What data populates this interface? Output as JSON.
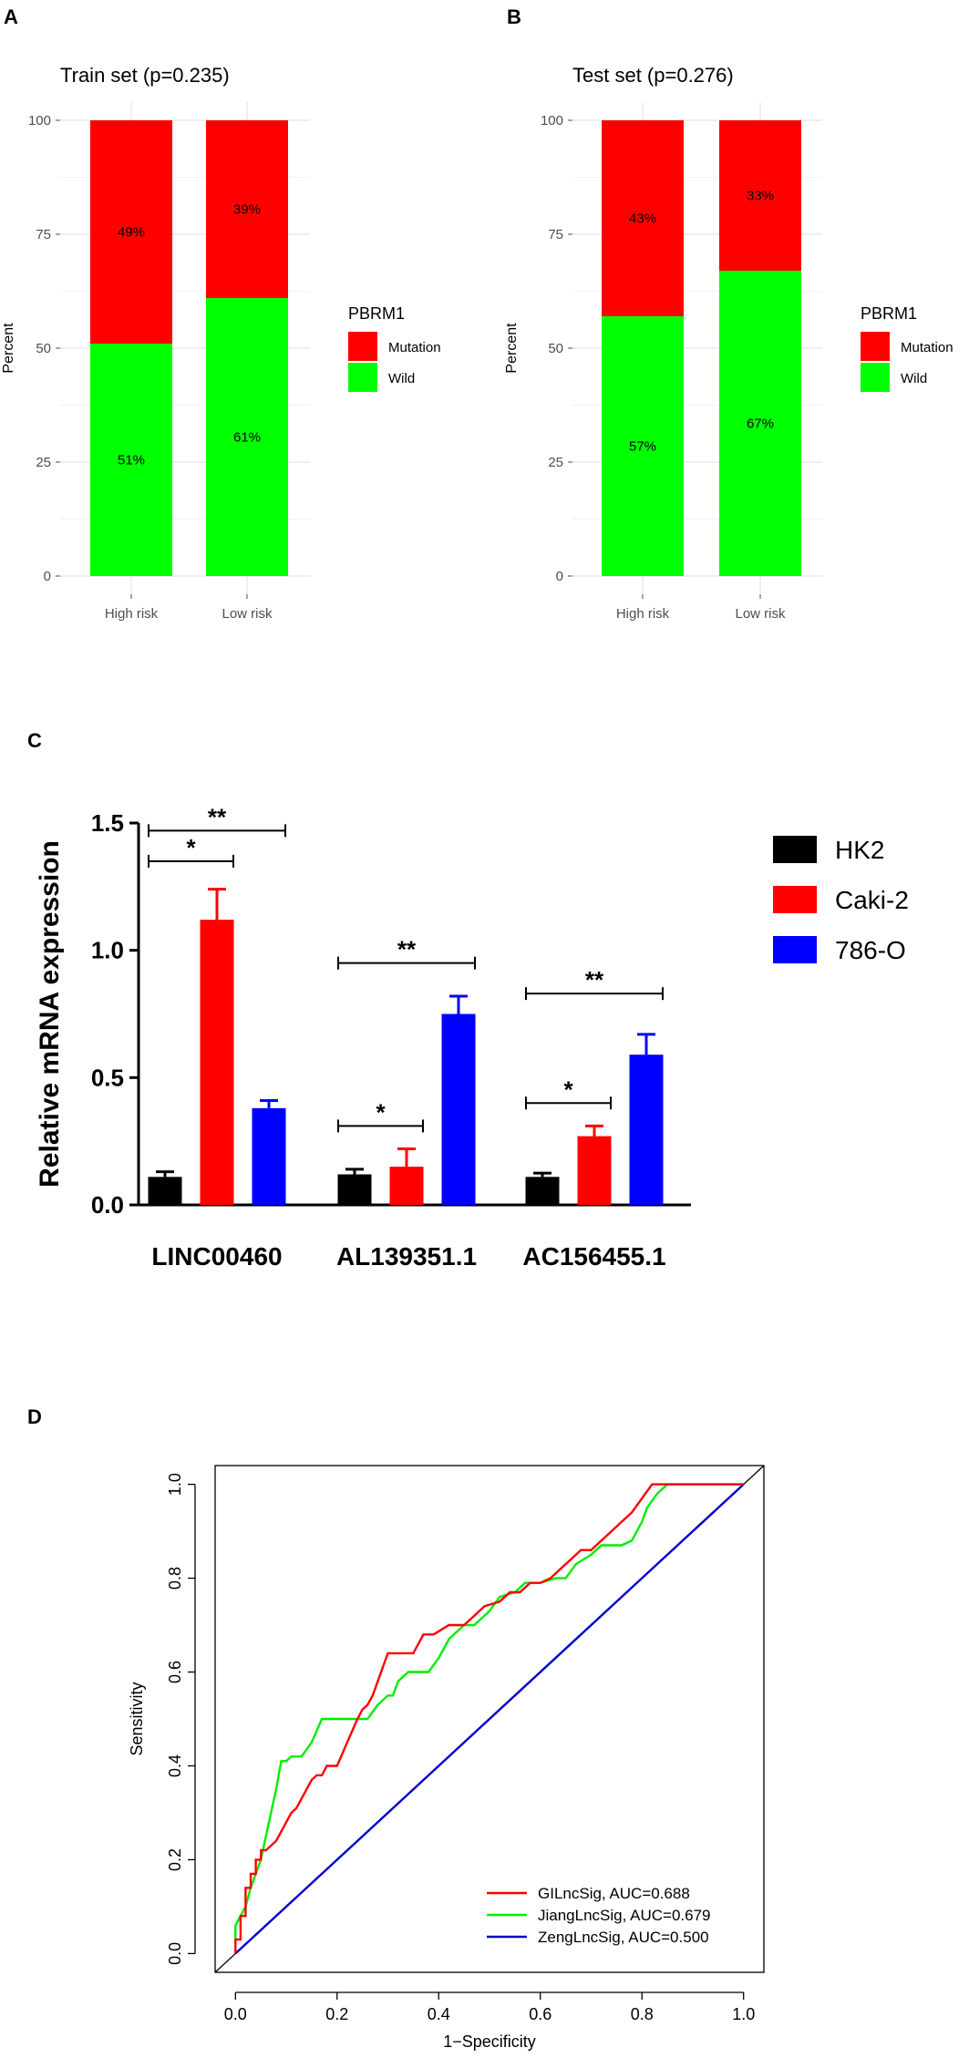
{
  "chart_data": [
    {
      "panel": "A",
      "type": "bar",
      "stacked": true,
      "title": "Train set (p=0.235)",
      "xlabel": "",
      "ylabel": "Percent",
      "ylim": [
        0,
        100
      ],
      "yticks": [
        0,
        25,
        50,
        75,
        100
      ],
      "grid": true,
      "categories": [
        "High risk",
        "Low risk"
      ],
      "legend_title": "PBRM1",
      "legend_position": "right",
      "series": [
        {
          "name": "Wild",
          "color": "#00ff00",
          "values": [
            51,
            61
          ],
          "labels": [
            "51%",
            "61%"
          ]
        },
        {
          "name": "Mutation",
          "color": "#ff0000",
          "values": [
            49,
            39
          ],
          "labels": [
            "49%",
            "39%"
          ]
        }
      ]
    },
    {
      "panel": "B",
      "type": "bar",
      "stacked": true,
      "title": "Test set (p=0.276)",
      "xlabel": "",
      "ylabel": "Percent",
      "ylim": [
        0,
        100
      ],
      "yticks": [
        0,
        25,
        50,
        75,
        100
      ],
      "grid": true,
      "categories": [
        "High risk",
        "Low risk"
      ],
      "legend_title": "PBRM1",
      "legend_position": "right",
      "series": [
        {
          "name": "Wild",
          "color": "#00ff00",
          "values": [
            57,
            67
          ],
          "labels": [
            "57%",
            "67%"
          ]
        },
        {
          "name": "Mutation",
          "color": "#ff0000",
          "values": [
            43,
            33
          ],
          "labels": [
            "43%",
            "33%"
          ]
        }
      ]
    },
    {
      "panel": "C",
      "type": "bar",
      "title": "",
      "xlabel": "",
      "ylabel": "Relative mRNA expression",
      "ylim": [
        0,
        1.5
      ],
      "yticks": [
        0.0,
        0.5,
        1.0,
        1.5
      ],
      "ytick_labels": [
        "0.0",
        "0.5",
        "1.0",
        "1.5"
      ],
      "grid": false,
      "categories": [
        "LINC00460",
        "AL139351.1",
        "AC156455.1"
      ],
      "legend_position": "right",
      "series": [
        {
          "name": "HK2",
          "color": "#000000",
          "values": [
            0.11,
            0.12,
            0.11
          ],
          "errors": [
            0.02,
            0.02,
            0.015
          ]
        },
        {
          "name": "Caki-2",
          "color": "#ff0000",
          "values": [
            1.12,
            0.15,
            0.27
          ],
          "errors": [
            0.12,
            0.07,
            0.04
          ]
        },
        {
          "name": "786-O",
          "color": "#0000ff",
          "values": [
            0.38,
            0.75,
            0.59
          ],
          "errors": [
            0.03,
            0.07,
            0.08
          ]
        }
      ],
      "significance": [
        {
          "category": "LINC00460",
          "from": "HK2",
          "to": "Caki-2",
          "y": 1.35,
          "label": "*"
        },
        {
          "category": "LINC00460",
          "from": "HK2",
          "to": "786-O",
          "y": 1.47,
          "label": "**"
        },
        {
          "category": "AL139351.1",
          "from": "HK2",
          "to": "Caki-2",
          "y": 0.31,
          "label": "*"
        },
        {
          "category": "AL139351.1",
          "from": "HK2",
          "to": "786-O",
          "y": 0.95,
          "label": "**"
        },
        {
          "category": "AC156455.1",
          "from": "HK2",
          "to": "Caki-2",
          "y": 0.4,
          "label": "*"
        },
        {
          "category": "AC156455.1",
          "from": "HK2",
          "to": "786-O",
          "y": 0.83,
          "label": "**"
        }
      ]
    },
    {
      "panel": "D",
      "type": "line",
      "title": "",
      "xlabel": "1−Specificity",
      "ylabel": "Sensitivity",
      "xlim": [
        -0.04,
        1.04
      ],
      "ylim": [
        -0.04,
        1.04
      ],
      "xticks": [
        0.0,
        0.2,
        0.4,
        0.6,
        0.8,
        1.0
      ],
      "yticks": [
        0.0,
        0.2,
        0.4,
        0.6,
        0.8,
        1.0
      ],
      "tick_labels": [
        "0.0",
        "0.2",
        "0.4",
        "0.6",
        "0.8",
        "1.0"
      ],
      "grid": false,
      "legend_position": "bottom-right",
      "series": [
        {
          "name": "GILncSig, AUC=0.688",
          "color": "#ff0000",
          "x": [
            0,
            0,
            0.01,
            0.01,
            0.02,
            0.02,
            0.03,
            0.03,
            0.04,
            0.04,
            0.05,
            0.05,
            0.06,
            0.07,
            0.08,
            0.09,
            0.1,
            0.11,
            0.12,
            0.13,
            0.14,
            0.15,
            0.16,
            0.17,
            0.18,
            0.2,
            0.22,
            0.24,
            0.25,
            0.26,
            0.27,
            0.28,
            0.29,
            0.3,
            0.32,
            0.35,
            0.37,
            0.39,
            0.42,
            0.45,
            0.47,
            0.49,
            0.52,
            0.54,
            0.56,
            0.58,
            0.6,
            0.62,
            0.64,
            0.66,
            0.68,
            0.7,
            0.72,
            0.74,
            0.76,
            0.78,
            0.8,
            0.82,
            0.86,
            1.0
          ],
          "y": [
            0,
            0.03,
            0.03,
            0.08,
            0.08,
            0.14,
            0.14,
            0.17,
            0.17,
            0.2,
            0.2,
            0.22,
            0.22,
            0.23,
            0.24,
            0.26,
            0.28,
            0.3,
            0.31,
            0.33,
            0.35,
            0.37,
            0.38,
            0.38,
            0.4,
            0.4,
            0.45,
            0.5,
            0.52,
            0.53,
            0.55,
            0.58,
            0.61,
            0.64,
            0.64,
            0.64,
            0.68,
            0.68,
            0.7,
            0.7,
            0.72,
            0.74,
            0.75,
            0.77,
            0.77,
            0.79,
            0.79,
            0.8,
            0.82,
            0.84,
            0.86,
            0.86,
            0.88,
            0.9,
            0.92,
            0.94,
            0.97,
            1.0,
            1.0,
            1.0
          ]
        },
        {
          "name": "JiangLncSig, AUC=0.679",
          "color": "#00ee00",
          "x": [
            0,
            0,
            0.02,
            0.03,
            0.04,
            0.05,
            0.06,
            0.07,
            0.08,
            0.09,
            0.1,
            0.11,
            0.13,
            0.15,
            0.17,
            0.2,
            0.22,
            0.24,
            0.26,
            0.28,
            0.3,
            0.31,
            0.32,
            0.34,
            0.36,
            0.38,
            0.4,
            0.42,
            0.45,
            0.47,
            0.5,
            0.52,
            0.55,
            0.57,
            0.6,
            0.63,
            0.65,
            0.67,
            0.7,
            0.72,
            0.74,
            0.76,
            0.78,
            0.79,
            0.8,
            0.81,
            0.83,
            0.85,
            1.0
          ],
          "y": [
            0,
            0.06,
            0.1,
            0.14,
            0.17,
            0.2,
            0.25,
            0.3,
            0.35,
            0.41,
            0.41,
            0.42,
            0.42,
            0.45,
            0.5,
            0.5,
            0.5,
            0.5,
            0.5,
            0.53,
            0.55,
            0.55,
            0.58,
            0.6,
            0.6,
            0.6,
            0.63,
            0.67,
            0.7,
            0.7,
            0.73,
            0.76,
            0.77,
            0.79,
            0.79,
            0.8,
            0.8,
            0.83,
            0.85,
            0.87,
            0.87,
            0.87,
            0.88,
            0.9,
            0.92,
            0.95,
            0.98,
            1.0,
            1.0
          ]
        },
        {
          "name": "ZengLncSig, AUC=0.500",
          "color": "#0000cc",
          "x": [
            0,
            1.0
          ],
          "y": [
            0,
            1.0
          ]
        }
      ]
    }
  ],
  "panels": {
    "a": {
      "letter": "A",
      "title": "Train set (p=0.235)"
    },
    "b": {
      "letter": "B",
      "title": "Test set (p=0.276)"
    },
    "c": {
      "letter": "C"
    },
    "d": {
      "letter": "D"
    }
  }
}
